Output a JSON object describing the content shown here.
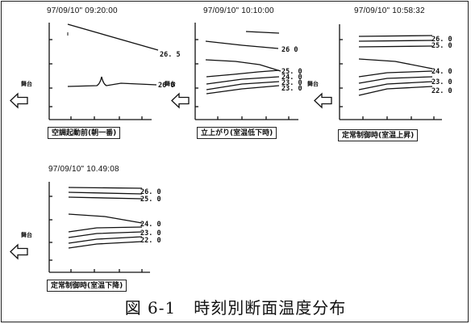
{
  "figure_caption": {
    "number": "図 6-1",
    "title": "時刻別断面温度分布"
  },
  "stage_label": "舞台",
  "panels": [
    {
      "timestamp": "97/09/10\"  09:20:00",
      "caption": "空調起動前(朝一番)",
      "value_labels": [
        "26. 5",
        "26 0"
      ]
    },
    {
      "timestamp": "97/09/10\"  10:10:00",
      "caption": "立上がり(室温低下時)",
      "value_labels": [
        "26 0",
        "25. 0",
        "24. 0",
        "23. 0",
        "23. 0"
      ]
    },
    {
      "timestamp": "97/09/10\"  10:58:32",
      "caption": "定常制御時(室温上昇)",
      "value_labels": [
        "26. 0",
        "25. 0",
        "24. 0",
        "23. 0",
        "22. 0"
      ]
    },
    {
      "timestamp": "97/09/10\"  10.49:08",
      "caption": "定常制御時(室温下降)",
      "value_labels": [
        "26. 0",
        "25. 0",
        "24. 0",
        "23. 0",
        "22. 0"
      ]
    }
  ]
}
